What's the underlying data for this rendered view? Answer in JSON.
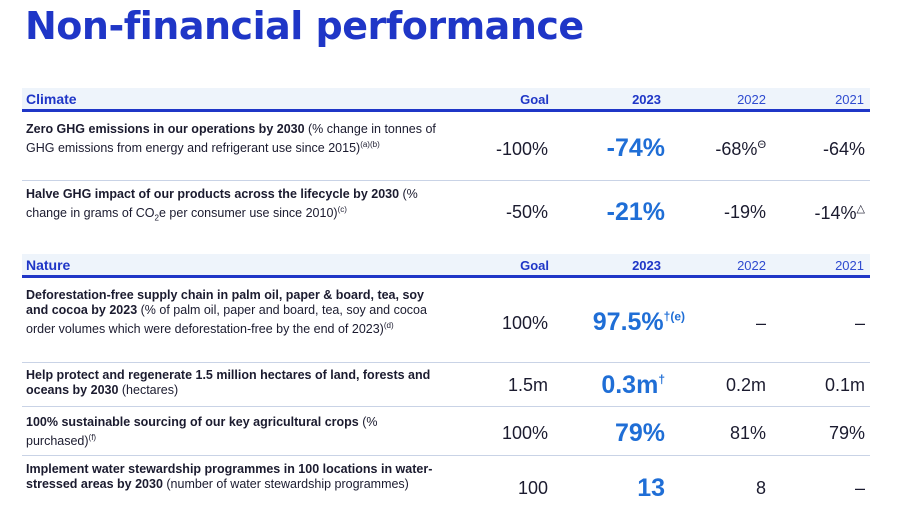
{
  "title": "Non-financial performance",
  "climate": {
    "heading": "Climate",
    "cols": [
      "Goal",
      "2023",
      "2022",
      "2021"
    ],
    "rows": [
      {
        "bold": "Zero GHG emissions in our operations by 2030",
        "text": " (% change in tonnes of GHG emissions from energy and refrigerant use since 2015)",
        "note": "(a)(b)",
        "goal": "-100%",
        "y2023": "-74%",
        "y2023_mark": "",
        "y2022": "-68%",
        "y2022_mark": "Θ",
        "y2021": "-64%",
        "y2021_mark": ""
      },
      {
        "bold": "Halve GHG impact of our products across the lifecycle by 2030",
        "text_pre": " (% change in grams of CO",
        "sub": "2",
        "text_post": "e per consumer use since 2010)",
        "note": "(c)",
        "goal": "-50%",
        "y2023": "-21%",
        "y2023_mark": "",
        "y2022": "-19%",
        "y2022_mark": "",
        "y2021": "-14%",
        "y2021_mark": "△"
      }
    ]
  },
  "nature": {
    "heading": "Nature",
    "cols": [
      "Goal",
      "2023",
      "2022",
      "2021"
    ],
    "rows": [
      {
        "bold": "Deforestation-free supply chain in palm oil, paper & board, tea, soy and cocoa by 2023",
        "text": " (% of palm oil, paper and board, tea, soy and cocoa order volumes which were deforestation-free by the end of 2023)",
        "note": "(d)",
        "goal": "100%",
        "y2023": "97.5%",
        "y2023_mark": "†(e)",
        "y2022": "–",
        "y2022_mark": "",
        "y2021": "–",
        "y2021_mark": ""
      },
      {
        "bold": "Help protect and regenerate 1.5 million hectares of land, forests and oceans by 2030",
        "text": " (hectares)",
        "note": "",
        "goal": "1.5m",
        "y2023": "0.3m",
        "y2023_mark": "†",
        "y2022": "0.2m",
        "y2022_mark": "",
        "y2021": "0.1m",
        "y2021_mark": ""
      },
      {
        "bold": "100% sustainable sourcing of our key agricultural crops",
        "text": " (% purchased)",
        "note": "(f)",
        "goal": "100%",
        "y2023": "79%",
        "y2023_mark": "",
        "y2022": "81%",
        "y2022_mark": "",
        "y2021": "79%",
        "y2021_mark": ""
      },
      {
        "bold": "Implement water stewardship programmes in 100 locations in water-stressed areas by 2030",
        "text": " (number of water stewardship programmes)",
        "note": "",
        "goal": "100",
        "y2023": "13",
        "y2023_mark": "",
        "y2022": "8",
        "y2022_mark": "",
        "y2021": "–",
        "y2021_mark": ""
      }
    ]
  }
}
